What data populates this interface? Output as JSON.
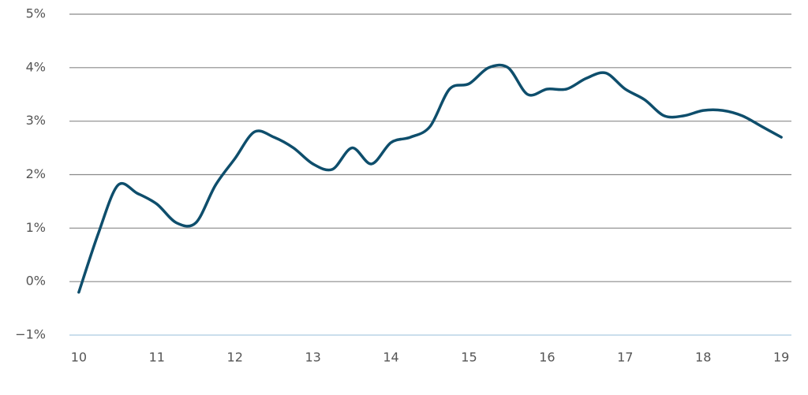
{
  "chart_data": {
    "type": "line",
    "x": [
      10,
      10.25,
      10.5,
      10.75,
      11,
      11.25,
      11.5,
      11.75,
      12,
      12.25,
      12.5,
      12.75,
      13,
      13.25,
      13.5,
      13.75,
      14,
      14.25,
      14.5,
      14.75,
      15,
      15.25,
      15.5,
      15.75,
      16,
      16.25,
      16.5,
      16.75,
      17,
      17.25,
      17.5,
      17.75,
      18,
      18.25,
      18.5,
      18.75,
      19
    ],
    "series": [
      {
        "color": "#0e4e6c",
        "values": [
          -0.2,
          0.9,
          1.8,
          1.65,
          1.45,
          1.1,
          1.1,
          1.8,
          2.3,
          2.8,
          2.7,
          2.5,
          2.2,
          2.1,
          2.5,
          2.2,
          2.6,
          2.7,
          2.9,
          3.6,
          3.7,
          4.0,
          4.0,
          3.5,
          3.6,
          3.6,
          3.8,
          3.9,
          3.6,
          3.4,
          3.1,
          3.1,
          3.2,
          3.2,
          3.1,
          2.9,
          2.7
        ]
      }
    ],
    "xlim": [
      9.88,
      19.13
    ],
    "xticks": [
      10,
      11,
      12,
      13,
      14,
      15,
      16,
      17,
      18,
      19
    ],
    "ylim": [
      -1,
      5
    ],
    "yticks": [
      {
        "value": -1,
        "label": "−1%"
      },
      {
        "value": 0,
        "label": "0%"
      },
      {
        "value": 1,
        "label": "1%"
      },
      {
        "value": 2,
        "label": "2%"
      },
      {
        "value": 3,
        "label": "3%"
      },
      {
        "value": 4,
        "label": "4%"
      },
      {
        "value": 5,
        "label": "5%"
      }
    ],
    "grid": true
  }
}
